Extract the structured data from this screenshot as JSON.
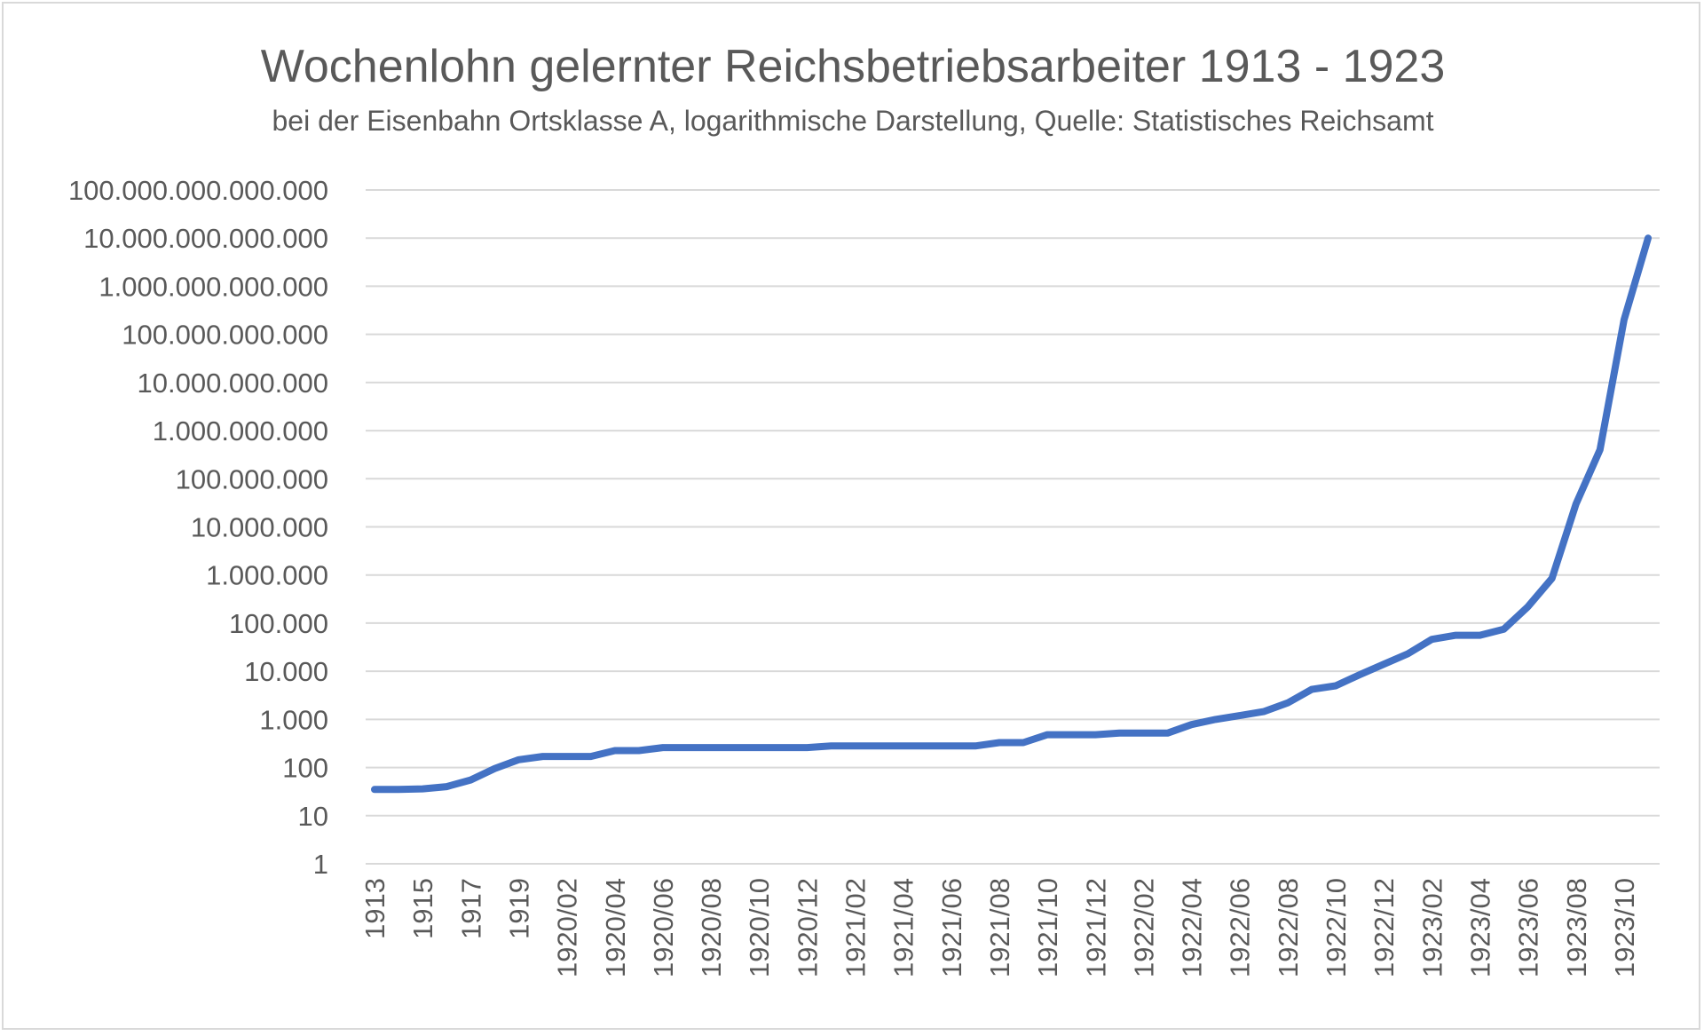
{
  "chart_data": {
    "type": "line",
    "title": "Wochenlohn gelernter Reichsbetriebsarbeiter 1913 - 1923",
    "subtitle": "bei der Eisenbahn Ortsklasse A, logarithmische Darstellung, Quelle: Statistisches Reichsamt",
    "xlabel": "",
    "ylabel": "",
    "y_scale": "log10",
    "ylim": [
      1,
      100000000000000
    ],
    "grid": true,
    "legend": "none",
    "line_color": "#4472c4",
    "y_tick_labels": [
      "1",
      "10",
      "100",
      "1.000",
      "10.000",
      "100.000",
      "1.000.000",
      "10.000.000",
      "100.000.000",
      "1.000.000.000",
      "10.000.000.000",
      "100.000.000.000",
      "1.000.000.000.000",
      "10.000.000.000.000",
      "100.000.000.000.000"
    ],
    "x": [
      "1913",
      "1914",
      "1915",
      "1916",
      "1917",
      "1918",
      "1919",
      "1920/01",
      "1920/02",
      "1920/03",
      "1920/04",
      "1920/05",
      "1920/06",
      "1920/07",
      "1920/08",
      "1920/09",
      "1920/10",
      "1920/11",
      "1920/12",
      "1921/01",
      "1921/02",
      "1921/03",
      "1921/04",
      "1921/05",
      "1921/06",
      "1921/07",
      "1921/08",
      "1921/09",
      "1921/10",
      "1921/11",
      "1921/12",
      "1922/01",
      "1922/02",
      "1922/03",
      "1922/04",
      "1922/05",
      "1922/06",
      "1922/07",
      "1922/08",
      "1922/09",
      "1922/10",
      "1922/11",
      "1922/12",
      "1923/01",
      "1923/02",
      "1923/03",
      "1923/04",
      "1923/05",
      "1923/06",
      "1923/07",
      "1923/08",
      "1923/09",
      "1923/10",
      "1923/11"
    ],
    "x_tick_labels": [
      "1913",
      "1915",
      "1917",
      "1919",
      "1920/02",
      "1920/04",
      "1920/06",
      "1920/08",
      "1920/10",
      "1920/12",
      "1921/02",
      "1921/04",
      "1921/06",
      "1921/08",
      "1921/10",
      "1921/12",
      "1922/02",
      "1922/04",
      "1922/06",
      "1922/08",
      "1922/10",
      "1922/12",
      "1923/02",
      "1923/04",
      "1923/06",
      "1923/08",
      "1923/10"
    ],
    "series": [
      {
        "name": "",
        "values": [
          35,
          35,
          36,
          40,
          55,
          95,
          145,
          170,
          170,
          170,
          225,
          225,
          260,
          260,
          260,
          260,
          260,
          260,
          260,
          280,
          280,
          280,
          280,
          280,
          280,
          280,
          330,
          330,
          480,
          480,
          480,
          520,
          520,
          520,
          780,
          1000,
          1200,
          1450,
          2200,
          4200,
          5000,
          8500,
          14000,
          23000,
          46000,
          56000,
          56000,
          75000,
          220000,
          850000,
          30000000,
          400000000,
          200000000000,
          10000000000000
        ]
      }
    ]
  }
}
